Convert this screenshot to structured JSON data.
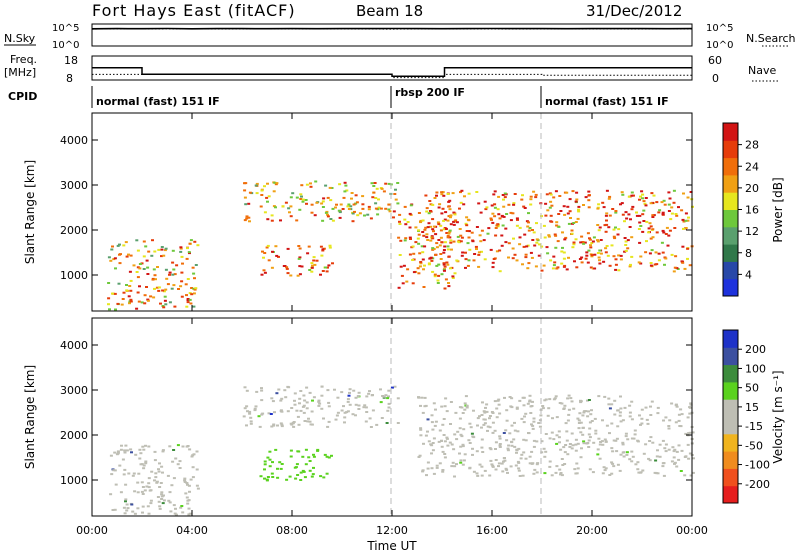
{
  "header": {
    "radar": "Fort Hays East (fitACF)",
    "beam": "Beam 18",
    "date": "31/Dec/2012"
  },
  "top_panels": {
    "nsky_label": "N.Sky",
    "nsearch_label": "N.Search",
    "nsky_ticks": [
      "10^5",
      "10^0"
    ],
    "nsearch_ticks": [
      "10^5",
      "10^0"
    ],
    "freq_label": "Freq.",
    "freq_unit": "[MHz]",
    "freq_ticks": [
      "18",
      "8"
    ],
    "nave_label": "Nave",
    "nave_ticks": [
      "60",
      "0"
    ],
    "cpid_label": "CPID"
  },
  "colors": {
    "power": [
      "#1e32dc",
      "#2848a8",
      "#30784a",
      "#5aa06e",
      "#6ec83c",
      "#e6e61e",
      "#f0a014",
      "#f06e0a",
      "#e63c0a",
      "#d21414"
    ],
    "velocity": [
      "#e61e1e",
      "#f0501e",
      "#f08c1e",
      "#f0b41e",
      "#bebeb4",
      "#bebeb4",
      "#5ad21e",
      "#3c8c3c",
      "#3c50a0",
      "#1e32c8"
    ]
  },
  "chart_data": [
    {
      "type": "line",
      "name": "noise",
      "series": [
        {
          "name": "N.Sky",
          "values": [
            8000,
            9000,
            8500,
            9500,
            8200,
            8800,
            9200,
            8700,
            9100,
            8600,
            9000,
            8800,
            9300,
            8900,
            8500,
            9000,
            9400,
            8800,
            9100,
            8700,
            9000,
            8900,
            9200,
            8600,
            8800
          ]
        },
        {
          "name": "N.Search",
          "values": [
            7000,
            7800,
            7400,
            8100,
            7600,
            7200,
            7900,
            7500,
            7700,
            7300,
            7800,
            7400,
            7100,
            7600,
            7300,
            7500,
            7900,
            7400,
            7700,
            7200,
            7500,
            7600,
            7300,
            7800,
            7400
          ]
        }
      ]
    },
    {
      "type": "line",
      "name": "frequency",
      "xlabel": "Time UT",
      "series": [
        {
          "name": "Freq.",
          "x": [
            0,
            2,
            2,
            12,
            12,
            14.1,
            14.1,
            24
          ],
          "values": [
            13.1,
            13.1,
            10.4,
            10.4,
            9.6,
            9.6,
            13.1,
            13.1
          ]
        },
        {
          "name": "Nave",
          "x": [
            0,
            12,
            12,
            14.1,
            14.1,
            18,
            18,
            24
          ],
          "values": [
            14,
            14,
            6,
            6,
            14,
            14,
            12,
            12
          ]
        }
      ]
    },
    {
      "type": "table",
      "name": "cpid",
      "segments": [
        {
          "start": 0,
          "end": 12,
          "label": "normal (fast) 151 IF"
        },
        {
          "start": 12,
          "end": 18,
          "label": "rbsp 200 IF"
        },
        {
          "start": 18,
          "end": 24,
          "label": "normal (fast) 151 IF"
        }
      ]
    },
    {
      "type": "heatmap",
      "name": "power",
      "ylabel": "Slant Range [km]",
      "xlim": [
        0,
        24
      ],
      "ylim": [
        200,
        4600
      ],
      "xticks": [
        "00:00",
        "04:00",
        "08:00",
        "12:00",
        "16:00",
        "20:00",
        "00:00"
      ],
      "yticks": [
        "1000",
        "2000",
        "3000",
        "4000"
      ],
      "colorbar_label": "Power [dB]",
      "colorbar_ticks": [
        "4",
        "8",
        "12",
        "16",
        "20",
        "24",
        "28"
      ],
      "scatter_regions": [
        {
          "t0": 0.6,
          "t1": 4.2,
          "r0": 250,
          "r1": 1800,
          "level": 6
        },
        {
          "t0": 6.0,
          "t1": 12.2,
          "r0": 2200,
          "r1": 3100,
          "level": 6
        },
        {
          "t0": 6.7,
          "t1": 9.6,
          "r0": 1000,
          "r1": 1700,
          "level": 7
        },
        {
          "t0": 12.2,
          "t1": 14.5,
          "r0": 700,
          "r1": 2600,
          "level": 7
        },
        {
          "t0": 13.0,
          "t1": 24,
          "r0": 1100,
          "r1": 2900,
          "level": 7
        }
      ]
    },
    {
      "type": "heatmap",
      "name": "velocity",
      "ylabel": "Slant Range [km]",
      "xlabel": "Time UT",
      "xlim": [
        0,
        24
      ],
      "ylim": [
        200,
        4600
      ],
      "xticks": [
        "00:00",
        "04:00",
        "08:00",
        "12:00",
        "16:00",
        "20:00",
        "00:00"
      ],
      "yticks": [
        "1000",
        "2000",
        "3000",
        "4000"
      ],
      "colorbar_label": "Velocity [m s⁻¹]",
      "colorbar_ticks": [
        "200",
        "100",
        "50",
        "15",
        "-15",
        "-50",
        "-100",
        "-200"
      ],
      "scatter_regions": [
        {
          "t0": 0.6,
          "t1": 4.2,
          "r0": 250,
          "r1": 1800,
          "level": "gs-ground"
        },
        {
          "t0": 6.0,
          "t1": 12.2,
          "r0": 2200,
          "r1": 3100,
          "level": "slow"
        },
        {
          "t0": 6.7,
          "t1": 9.6,
          "r0": 1000,
          "r1": 1700,
          "level": "positive-30"
        },
        {
          "t0": 13.0,
          "t1": 24,
          "r0": 1100,
          "r1": 2900,
          "level": "slow"
        }
      ]
    }
  ]
}
